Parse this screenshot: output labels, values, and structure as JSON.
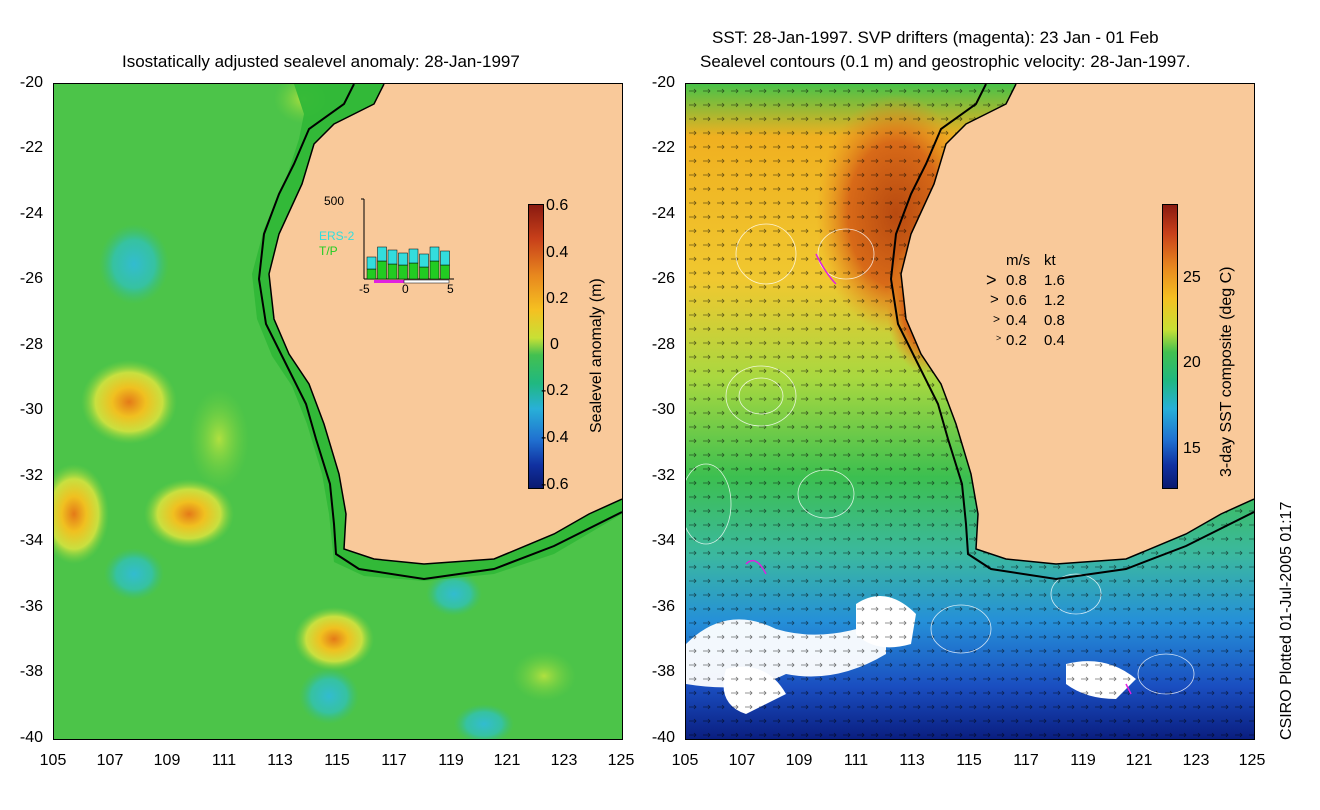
{
  "left_panel": {
    "title": "Isostatically adjusted sealevel anomaly: 28-Jan-1997",
    "colorbar_label": "Sealevel anomaly (m)",
    "colorbar_ticks": [
      "0.6",
      "0.4",
      "0.2",
      "0",
      "-0.2",
      "-0.4",
      "-0.6"
    ],
    "inset": {
      "ymax_label": "500",
      "series_labels": [
        "ERS-2",
        "T/P"
      ],
      "x_ticks": [
        "-5",
        "0",
        "5"
      ],
      "series_colors": {
        "ERS-2": "#33dddd",
        "T/P": "#22cc22"
      }
    }
  },
  "right_panel": {
    "title_line1": "SST: 28-Jan-1997. SVP drifters (magenta): 23 Jan - 01 Feb",
    "title_line2": "Sealevel contours (0.1 m) and geostrophic velocity: 28-Jan-1997.",
    "colorbar_label": "3-day SST composite (deg C)",
    "colorbar_ticks": [
      "25",
      "20",
      "15"
    ],
    "speed_legend": {
      "header_ms": "m/s",
      "header_kt": "kt",
      "rows": [
        {
          "ms": "0.8",
          "kt": "1.6"
        },
        {
          "ms": "0.6",
          "kt": "1.2"
        },
        {
          "ms": "0.4",
          "kt": "0.8"
        },
        {
          "ms": "0.2",
          "kt": "0.4"
        }
      ]
    }
  },
  "axes": {
    "y_ticks": [
      "-20",
      "-22",
      "-24",
      "-26",
      "-28",
      "-30",
      "-32",
      "-34",
      "-36",
      "-38",
      "-40"
    ],
    "x_ticks": [
      "105",
      "107",
      "109",
      "111",
      "113",
      "115",
      "117",
      "119",
      "121",
      "123",
      "125"
    ]
  },
  "credit": "CSIRO Plotted 01-Jul-2005 01:17",
  "colors": {
    "land": "#f9c99a",
    "ocean_green": "#49c245",
    "coast": "#000000"
  }
}
